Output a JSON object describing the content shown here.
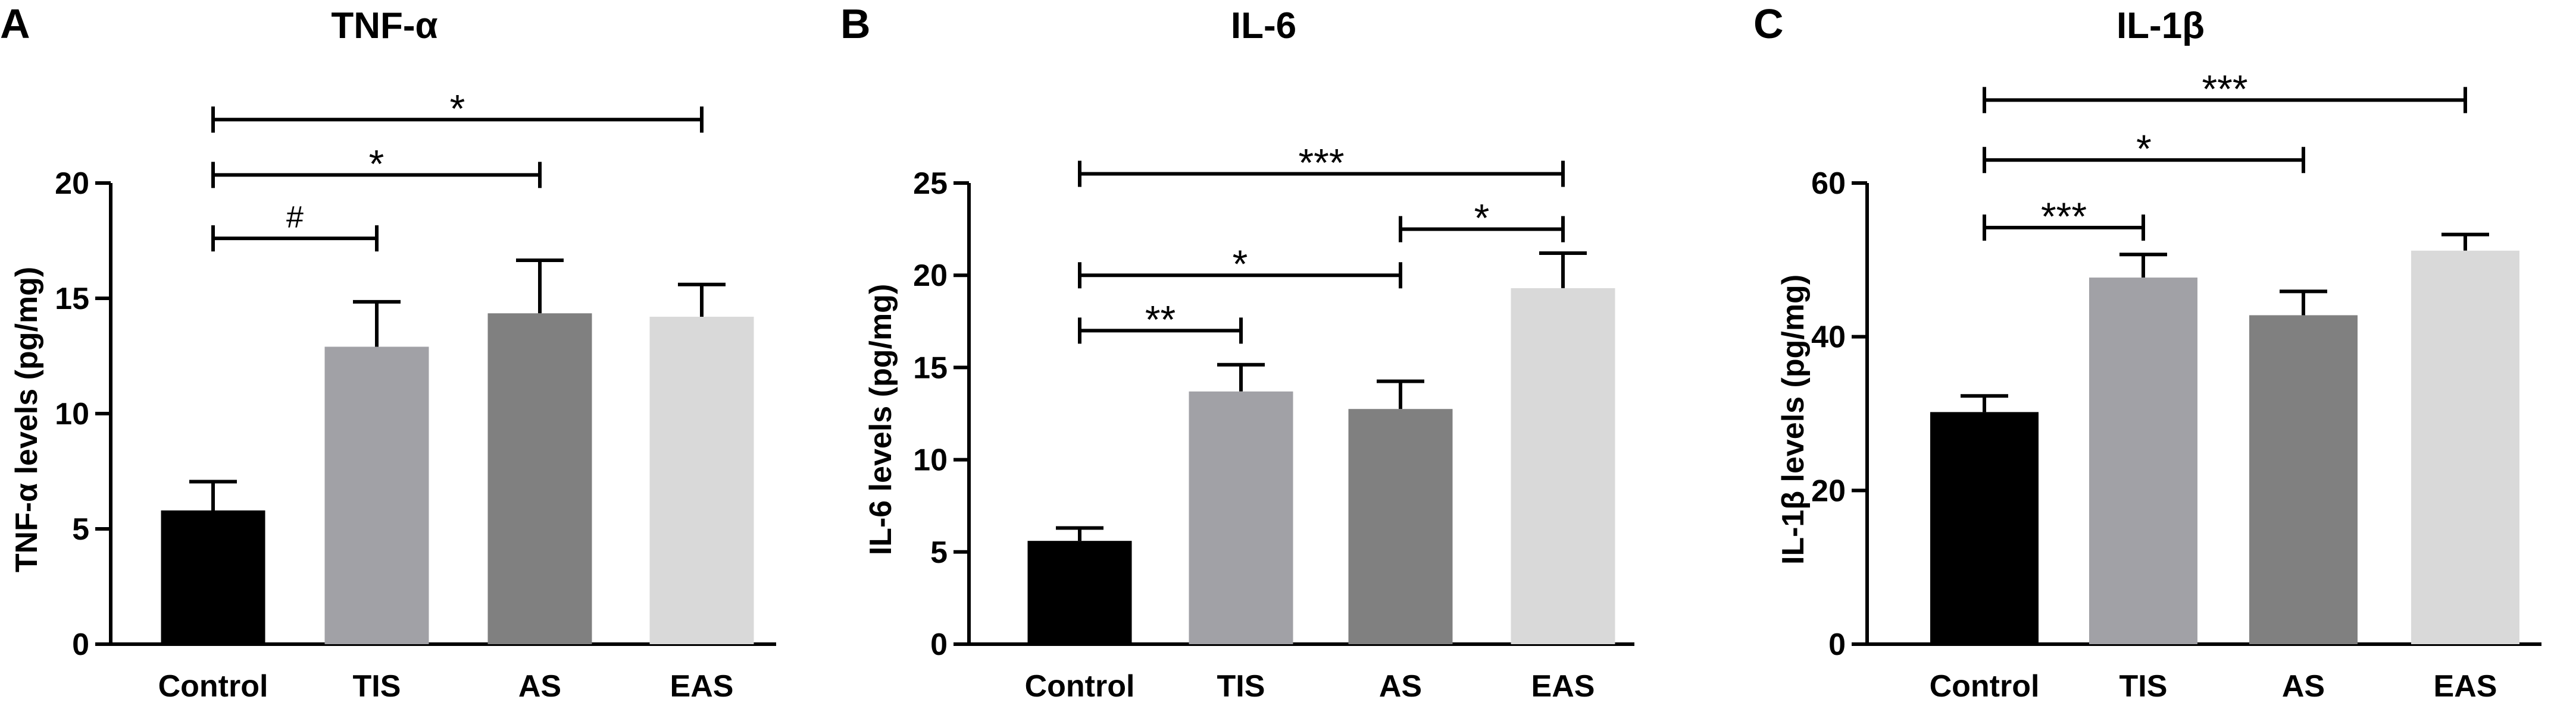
{
  "panels": [
    {
      "letter": "A",
      "chart_data": {
        "type": "bar",
        "title": "TNF-α",
        "xlabel": "",
        "ylabel": "TNF-α levels (pg/mg)",
        "categories": [
          "Control",
          "TIS",
          "AS",
          "EAS"
        ],
        "values": [
          5.8,
          12.9,
          14.35,
          14.2
        ],
        "errors": [
          1.25,
          1.95,
          2.3,
          1.4
        ],
        "colors": [
          "#000000",
          "#a1a1a6",
          "#808080",
          "#d9d9d9"
        ],
        "ylim": [
          0,
          20
        ],
        "yticks": [
          0,
          5,
          10,
          15,
          20
        ],
        "ytick_labels": [
          "0",
          "5",
          "10",
          "15",
          "20"
        ],
        "grid": false,
        "significance": [
          {
            "from": 0,
            "to": 1,
            "label": "#",
            "y": 17.6
          },
          {
            "from": 0,
            "to": 2,
            "label": "*",
            "y": 20.35
          },
          {
            "from": 0,
            "to": 3,
            "label": "*",
            "y": 22.75
          }
        ]
      }
    },
    {
      "letter": "B",
      "chart_data": {
        "type": "bar",
        "title": "IL-6",
        "xlabel": "",
        "ylabel": "IL-6 levels (pg/mg)",
        "categories": [
          "Control",
          "TIS",
          "AS",
          "EAS"
        ],
        "values": [
          5.6,
          13.7,
          12.75,
          19.3
        ],
        "errors": [
          0.7,
          1.45,
          1.5,
          1.9
        ],
        "colors": [
          "#000000",
          "#a1a1a6",
          "#808080",
          "#d9d9d9"
        ],
        "ylim": [
          0,
          25
        ],
        "yticks": [
          0,
          5,
          10,
          15,
          20,
          25
        ],
        "ytick_labels": [
          "0",
          "5",
          "10",
          "15",
          "20",
          "25"
        ],
        "grid": false,
        "significance": [
          {
            "from": 0,
            "to": 1,
            "label": "**",
            "y": 17.0
          },
          {
            "from": 0,
            "to": 2,
            "label": "*",
            "y": 20.0
          },
          {
            "from": 2,
            "to": 3,
            "label": "*",
            "y": 22.5
          },
          {
            "from": 0,
            "to": 3,
            "label": "***",
            "y": 25.5
          }
        ]
      }
    },
    {
      "letter": "C",
      "chart_data": {
        "type": "bar",
        "title": "IL-1β",
        "xlabel": "",
        "ylabel": "IL-1β levels (pg/mg)",
        "categories": [
          "Control",
          "TIS",
          "AS",
          "EAS"
        ],
        "values": [
          30.2,
          47.7,
          42.8,
          51.2
        ],
        "errors": [
          2.1,
          3.0,
          3.1,
          2.1
        ],
        "colors": [
          "#000000",
          "#a1a1a6",
          "#808080",
          "#d9d9d9"
        ],
        "ylim": [
          0,
          60
        ],
        "yticks": [
          0,
          20,
          40,
          60
        ],
        "ytick_labels": [
          "0",
          "20",
          "40",
          "60"
        ],
        "grid": false,
        "significance": [
          {
            "from": 0,
            "to": 1,
            "label": "***",
            "y": 54.2
          },
          {
            "from": 0,
            "to": 2,
            "label": "*",
            "y": 63.0
          },
          {
            "from": 0,
            "to": 3,
            "label": "***",
            "y": 70.8
          }
        ]
      }
    }
  ]
}
